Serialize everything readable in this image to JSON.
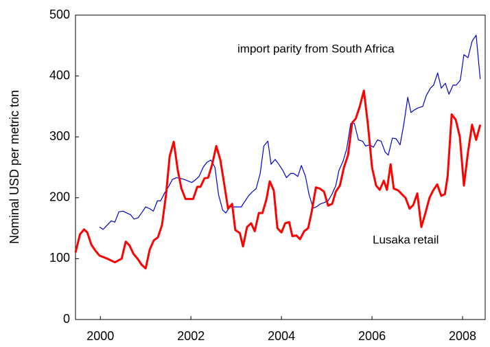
{
  "chart_data": {
    "type": "line",
    "y_label": "Nominal USD per metric ton",
    "xlim": [
      1999.95,
      2009
    ],
    "xticks": [
      {
        "value": 2000.5,
        "label": "2000"
      },
      {
        "value": 2002.5,
        "label": "2002"
      },
      {
        "value": 2004.5,
        "label": "2004"
      },
      {
        "value": 2006.5,
        "label": "2006"
      },
      {
        "value": 2008.5,
        "label": "2008"
      }
    ],
    "ylim": [
      0,
      500
    ],
    "yticks": [
      0,
      100,
      200,
      300,
      400,
      500
    ],
    "grid": false,
    "series": [
      {
        "name": "import parity from South Africa",
        "color": "#0000cc",
        "x": [
          2000.48,
          2000.56,
          2000.65,
          2000.74,
          2000.82,
          2000.91,
          2001.0,
          2001.08,
          2001.17,
          2001.24,
          2001.33,
          2001.41,
          2001.5,
          2001.59,
          2001.67,
          2001.76,
          2001.83,
          2001.92,
          2002.02,
          2002.09,
          2002.18,
          2002.26,
          2002.35,
          2002.42,
          2002.52,
          2002.61,
          2002.68,
          2002.77,
          2002.85,
          2002.94,
          2003.03,
          2003.11,
          2003.2,
          2003.27,
          2003.36,
          2003.44,
          2003.53,
          2003.61,
          2003.7,
          2003.77,
          2003.86,
          2003.94,
          2004.03,
          2004.11,
          2004.2,
          2004.27,
          2004.36,
          2004.44,
          2004.53,
          2004.61,
          2004.7,
          2004.77,
          2004.86,
          2004.94,
          2005.03,
          2005.11,
          2005.2,
          2005.27,
          2005.36,
          2005.44,
          2005.53,
          2005.61,
          2005.7,
          2005.77,
          2005.86,
          2005.94,
          2006.03,
          2006.11,
          2006.2,
          2006.29,
          2006.36,
          2006.45,
          2006.53,
          2006.62,
          2006.7,
          2006.79,
          2006.86,
          2006.95,
          2007.03,
          2007.12,
          2007.2,
          2007.29,
          2007.36,
          2007.45,
          2007.53,
          2007.62,
          2007.7,
          2007.79,
          2007.86,
          2007.95,
          2008.03,
          2008.12,
          2008.2,
          2008.29,
          2008.36,
          2008.45,
          2008.53,
          2008.62,
          2008.71,
          2008.8,
          2008.89
        ],
        "values": [
          152,
          148,
          155,
          162,
          160,
          177,
          178,
          175,
          172,
          165,
          167,
          175,
          185,
          182,
          178,
          195,
          195,
          208,
          220,
          230,
          233,
          232,
          230,
          228,
          225,
          230,
          235,
          250,
          258,
          262,
          250,
          205,
          180,
          175,
          185,
          185,
          185,
          185,
          195,
          203,
          210,
          215,
          240,
          285,
          293,
          255,
          263,
          255,
          245,
          233,
          240,
          240,
          235,
          253,
          235,
          205,
          183,
          185,
          190,
          192,
          195,
          205,
          220,
          245,
          260,
          280,
          322,
          322,
          295,
          293,
          285,
          287,
          283,
          295,
          293,
          275,
          270,
          298,
          297,
          287,
          320,
          365,
          340,
          345,
          348,
          350,
          368,
          380,
          385,
          405,
          380,
          388,
          370,
          385,
          385,
          393,
          435,
          430,
          457,
          467,
          395
        ]
      },
      {
        "name": "Lusaka retail",
        "color": "#ff0000",
        "x": [
          1999.95,
          2000.05,
          2000.14,
          2000.21,
          2000.3,
          2000.39,
          2000.48,
          2000.65,
          2000.82,
          2000.97,
          2001.06,
          2001.14,
          2001.23,
          2001.32,
          2001.41,
          2001.5,
          2001.59,
          2001.68,
          2001.77,
          2001.86,
          2001.95,
          2002.03,
          2002.12,
          2002.21,
          2002.29,
          2002.38,
          2002.55,
          2002.64,
          2002.71,
          2002.8,
          2002.88,
          2002.97,
          2003.06,
          2003.15,
          2003.23,
          2003.32,
          2003.41,
          2003.48,
          2003.58,
          2003.65,
          2003.74,
          2003.83,
          2003.91,
          2004.0,
          2004.08,
          2004.17,
          2004.24,
          2004.33,
          2004.41,
          2004.5,
          2004.58,
          2004.67,
          2004.74,
          2004.83,
          2004.91,
          2005.0,
          2005.09,
          2005.17,
          2005.26,
          2005.35,
          2005.44,
          2005.53,
          2005.62,
          2005.7,
          2005.79,
          2005.88,
          2005.97,
          2006.06,
          2006.14,
          2006.23,
          2006.32,
          2006.41,
          2006.5,
          2006.59,
          2006.67,
          2006.76,
          2006.83,
          2006.91,
          2006.98,
          2007.08,
          2007.17,
          2007.24,
          2007.33,
          2007.41,
          2007.5,
          2007.59,
          2007.68,
          2007.77,
          2007.85,
          2007.94,
          2008.03,
          2008.11,
          2008.17,
          2008.26,
          2008.35,
          2008.44,
          2008.53,
          2008.62,
          2008.71,
          2008.8,
          2008.89
        ],
        "values": [
          110,
          140,
          148,
          143,
          123,
          113,
          105,
          100,
          94,
          100,
          128,
          122,
          108,
          100,
          90,
          84,
          115,
          130,
          135,
          155,
          205,
          268,
          292,
          245,
          215,
          198,
          198,
          218,
          218,
          232,
          233,
          255,
          285,
          262,
          225,
          182,
          190,
          147,
          142,
          120,
          152,
          158,
          145,
          175,
          175,
          198,
          227,
          212,
          150,
          143,
          158,
          160,
          137,
          138,
          132,
          145,
          150,
          178,
          217,
          215,
          210,
          187,
          190,
          210,
          220,
          250,
          270,
          323,
          330,
          350,
          376,
          320,
          250,
          220,
          213,
          228,
          213,
          255,
          215,
          212,
          205,
          200,
          182,
          188,
          207,
          152,
          175,
          200,
          212,
          222,
          203,
          206,
          235,
          337,
          328,
          300,
          220,
          275,
          320,
          295,
          320
        ]
      }
    ]
  }
}
